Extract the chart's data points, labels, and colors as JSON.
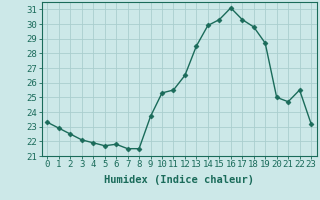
{
  "x": [
    0,
    1,
    2,
    3,
    4,
    5,
    6,
    7,
    8,
    9,
    10,
    11,
    12,
    13,
    14,
    15,
    16,
    17,
    18,
    19,
    20,
    21,
    22,
    23
  ],
  "y": [
    23.3,
    22.9,
    22.5,
    22.1,
    21.9,
    21.7,
    21.8,
    21.5,
    21.5,
    23.7,
    25.3,
    25.5,
    26.5,
    28.5,
    29.9,
    30.3,
    31.1,
    30.3,
    29.8,
    28.7,
    25.0,
    24.7,
    25.5,
    23.2
  ],
  "line_color": "#1a6b5a",
  "bg_color": "#cce8e8",
  "grid_color": "#aacece",
  "xlabel": "Humidex (Indice chaleur)",
  "xlim": [
    -0.5,
    23.5
  ],
  "ylim": [
    21,
    31.5
  ],
  "yticks": [
    21,
    22,
    23,
    24,
    25,
    26,
    27,
    28,
    29,
    30,
    31
  ],
  "xticks": [
    0,
    1,
    2,
    3,
    4,
    5,
    6,
    7,
    8,
    9,
    10,
    11,
    12,
    13,
    14,
    15,
    16,
    17,
    18,
    19,
    20,
    21,
    22,
    23
  ],
  "marker": "D",
  "marker_size": 2.5,
  "line_width": 1.0,
  "xlabel_fontsize": 7.5,
  "tick_fontsize": 6.5
}
